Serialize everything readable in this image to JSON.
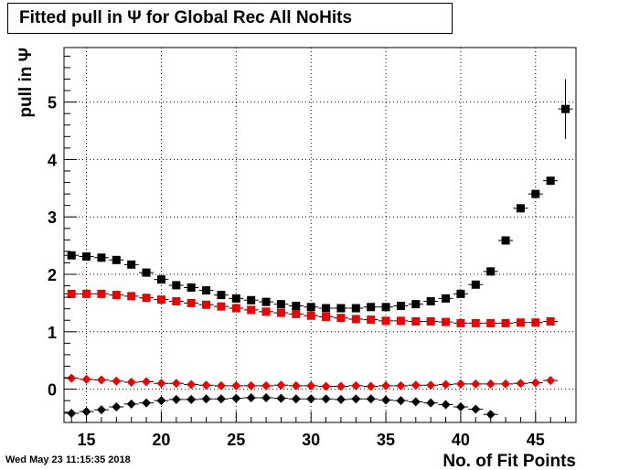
{
  "header": {
    "title": "Fitted pull in  Ψ  for Global Rec All NoHits"
  },
  "footer": {
    "date": "Wed May 23 11:15:35 2018"
  },
  "chart_data": {
    "type": "scatter",
    "title": "Fitted pull in  Ψ  for Global Rec All NoHits",
    "xlabel": "No. of Fit Points",
    "ylabel": "pull in  Ψ",
    "xlim": [
      13.5,
      47.7
    ],
    "ylim": [
      -0.58,
      5.95
    ],
    "x_ticks": [
      15,
      20,
      25,
      30,
      35,
      40,
      45
    ],
    "y_ticks": [
      0,
      1,
      2,
      3,
      4,
      5
    ],
    "grid": true,
    "series": [
      {
        "color": "#000000",
        "marker": "square",
        "x": [
          14,
          15,
          16,
          17,
          18,
          19,
          20,
          21,
          22,
          23,
          24,
          25,
          26,
          27,
          28,
          29,
          30,
          31,
          32,
          33,
          34,
          35,
          36,
          37,
          38,
          39,
          40,
          41,
          42,
          43,
          44,
          45,
          46,
          47
        ],
        "y": [
          2.33,
          2.31,
          2.29,
          2.25,
          2.17,
          2.03,
          1.91,
          1.81,
          1.77,
          1.72,
          1.64,
          1.58,
          1.55,
          1.52,
          1.48,
          1.45,
          1.43,
          1.41,
          1.41,
          1.41,
          1.43,
          1.43,
          1.45,
          1.48,
          1.53,
          1.58,
          1.66,
          1.82,
          2.05,
          2.59,
          3.15,
          3.4,
          3.63,
          4.88
        ],
        "yerr": [
          0,
          0,
          0,
          0,
          0,
          0,
          0,
          0,
          0,
          0,
          0,
          0,
          0,
          0,
          0,
          0,
          0,
          0,
          0,
          0,
          0,
          0,
          0,
          0,
          0,
          0,
          0,
          0,
          0,
          0,
          0,
          0,
          0,
          0.52
        ]
      },
      {
        "color": "#ee0000",
        "marker": "square",
        "x": [
          14,
          15,
          16,
          17,
          18,
          19,
          20,
          21,
          22,
          23,
          24,
          25,
          26,
          27,
          28,
          29,
          30,
          31,
          32,
          33,
          34,
          35,
          36,
          37,
          38,
          39,
          40,
          41,
          42,
          43,
          44,
          45,
          46
        ],
        "y": [
          1.66,
          1.66,
          1.66,
          1.64,
          1.62,
          1.59,
          1.56,
          1.53,
          1.5,
          1.47,
          1.44,
          1.41,
          1.38,
          1.35,
          1.33,
          1.31,
          1.28,
          1.26,
          1.24,
          1.22,
          1.21,
          1.19,
          1.19,
          1.18,
          1.18,
          1.17,
          1.15,
          1.15,
          1.15,
          1.15,
          1.16,
          1.16,
          1.18
        ]
      },
      {
        "color": "#ee0000",
        "marker": "diamond",
        "x": [
          14,
          15,
          16,
          17,
          18,
          19,
          20,
          21,
          22,
          23,
          24,
          25,
          26,
          27,
          28,
          29,
          30,
          31,
          32,
          33,
          34,
          35,
          36,
          37,
          38,
          39,
          40,
          41,
          42,
          43,
          44,
          45,
          46
        ],
        "y": [
          0.19,
          0.17,
          0.16,
          0.14,
          0.12,
          0.13,
          0.1,
          0.1,
          0.08,
          0.07,
          0.06,
          0.06,
          0.06,
          0.06,
          0.07,
          0.06,
          0.06,
          0.05,
          0.05,
          0.06,
          0.05,
          0.06,
          0.06,
          0.07,
          0.07,
          0.08,
          0.09,
          0.09,
          0.09,
          0.09,
          0.1,
          0.11,
          0.15
        ]
      },
      {
        "color": "#000000",
        "marker": "diamond",
        "x": [
          14,
          15,
          16,
          17,
          18,
          19,
          20,
          21,
          22,
          23,
          24,
          25,
          26,
          27,
          28,
          29,
          30,
          31,
          32,
          33,
          34,
          35,
          36,
          37,
          38,
          39,
          40,
          41,
          42
        ],
        "y": [
          -0.42,
          -0.39,
          -0.36,
          -0.31,
          -0.26,
          -0.24,
          -0.2,
          -0.18,
          -0.18,
          -0.17,
          -0.17,
          -0.16,
          -0.15,
          -0.15,
          -0.16,
          -0.17,
          -0.17,
          -0.17,
          -0.18,
          -0.17,
          -0.17,
          -0.19,
          -0.2,
          -0.22,
          -0.24,
          -0.27,
          -0.31,
          -0.35,
          -0.44
        ]
      }
    ]
  }
}
